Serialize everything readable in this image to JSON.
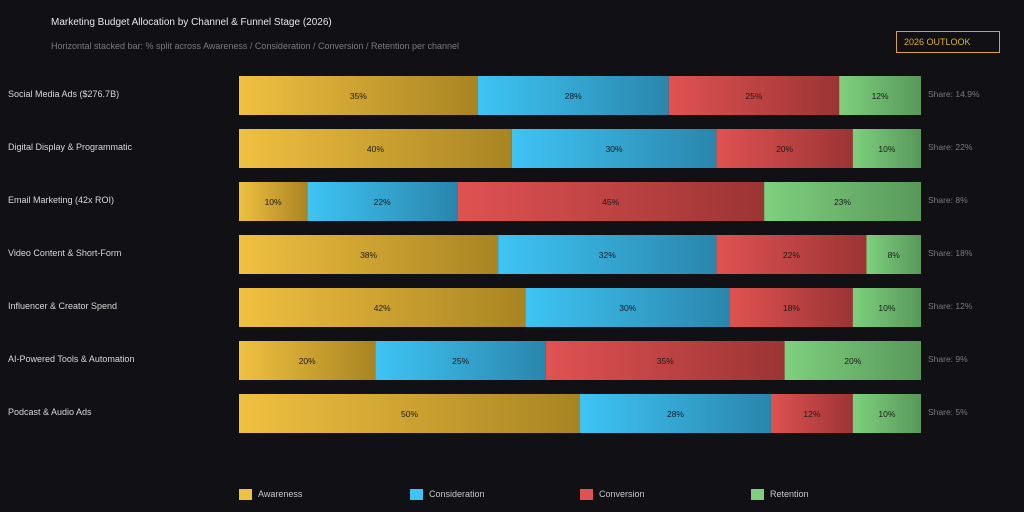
{
  "header": {
    "title": "Marketing Budget Allocation by Channel & Funnel Stage (2026)",
    "subtitle": "Horizontal stacked bar: % split across Awareness / Consideration / Conversion / Retention per channel",
    "badge": "2026 OUTLOOK"
  },
  "chart_data": {
    "type": "bar",
    "orientation": "horizontal",
    "stacked": true,
    "percent_scale": true,
    "title": "Marketing Budget Allocation by Channel & Funnel Stage (2026)",
    "subtitle": "Horizontal stacked bar: % split across Awareness / Consideration / Conversion / Retention per channel",
    "categories": [
      "Social Media Ads ($276.7B)",
      "Digital Display & Programmatic",
      "Email Marketing (42x ROI)",
      "Video Content & Short-Form",
      "Influencer & Creator Spend",
      "AI-Powered Tools & Automation",
      "Podcast & Audio Ads"
    ],
    "shares": [
      "Share: 14.9%",
      "Share: 22%",
      "Share: 8%",
      "Share: 18%",
      "Share: 12%",
      "Share: 9%",
      "Share: 5%"
    ],
    "series": [
      {
        "name": "Awareness",
        "color": "#f0c040",
        "color_dark": "#a88422",
        "values": [
          35,
          40,
          10,
          38,
          42,
          20,
          50
        ]
      },
      {
        "name": "Consideration",
        "color": "#3ec4f4",
        "color_dark": "#2a86ac",
        "values": [
          28,
          30,
          22,
          32,
          30,
          25,
          28
        ]
      },
      {
        "name": "Conversion",
        "color": "#e05252",
        "color_dark": "#9c3434",
        "values": [
          25,
          20,
          45,
          22,
          18,
          35,
          12
        ]
      },
      {
        "name": "Retention",
        "color": "#7ed07e",
        "color_dark": "#58985a",
        "values": [
          12,
          10,
          23,
          8,
          10,
          20,
          10
        ]
      }
    ],
    "xlim": [
      0,
      100
    ],
    "grid": false,
    "legend_position": "bottom"
  }
}
